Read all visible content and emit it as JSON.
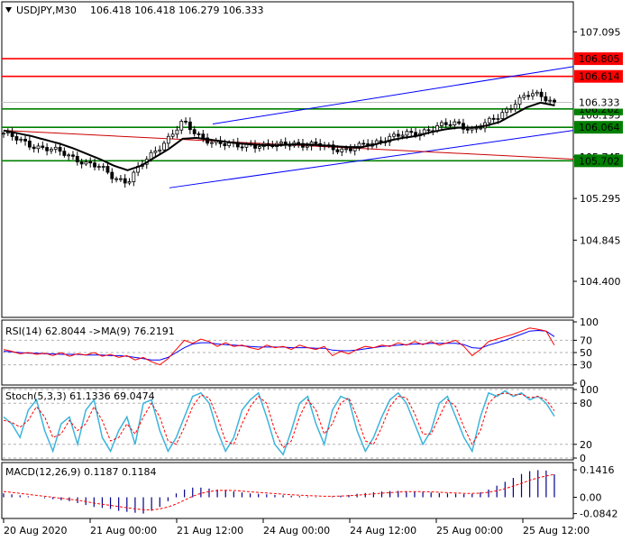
{
  "header": {
    "symbol": "USDJPY,M30",
    "ohlc": "106.418 106.418 106.279 106.333"
  },
  "colors": {
    "candle": "#000000",
    "ma_line": "#000000",
    "resistance": "#ff0000",
    "support": "#008000",
    "channel": "#0000ff",
    "trend_red": "#cc0000",
    "rsi_line": "#ff0000",
    "rsi_ma": "#0000ff",
    "stoch_main": "#3cb4dc",
    "stoch_signal": "#ff0000",
    "macd_hist": "#00008b",
    "macd_signal": "#ff0000"
  },
  "chart_data": [
    {
      "type": "candlestick",
      "title": "USDJPY,M30",
      "ylim": [
        104.03,
        107.4
      ],
      "y_ticks": [
        "107.095",
        "105.745",
        "105.295",
        "104.845",
        "104.400"
      ],
      "x_ticks": [
        "20 Aug 2020",
        "21 Aug 00:00",
        "21 Aug 12:00",
        "24 Aug 00:00",
        "24 Aug 12:00",
        "25 Aug 00:00",
        "25 Aug 12:00"
      ],
      "close_path": [
        106.0,
        105.93,
        105.87,
        105.84,
        105.8,
        105.74,
        105.68,
        105.63,
        105.52,
        105.48,
        105.66,
        105.8,
        105.96,
        106.12,
        105.98,
        105.92,
        105.88,
        105.86,
        105.88,
        105.86,
        105.87,
        105.9,
        105.87,
        105.87,
        105.84,
        105.82,
        105.86,
        105.9,
        105.96,
        105.98,
        106.0,
        106.05,
        106.09,
        106.1,
        106.04,
        106.1,
        106.18,
        106.32,
        106.42,
        106.4,
        106.333
      ],
      "ma_path": [
        106.03,
        106.0,
        105.97,
        105.93,
        105.89,
        105.84,
        105.78,
        105.72,
        105.65,
        105.6,
        105.65,
        105.74,
        105.83,
        105.94,
        105.95,
        105.93,
        105.91,
        105.89,
        105.88,
        105.87,
        105.87,
        105.88,
        105.88,
        105.87,
        105.86,
        105.85,
        105.85,
        105.88,
        105.92,
        105.95,
        105.97,
        106.01,
        106.04,
        106.06,
        106.06,
        106.08,
        106.12,
        106.2,
        106.28,
        106.33,
        106.3
      ],
      "levels": [
        {
          "label": "106.805",
          "value": 106.805,
          "color": "#ff0000",
          "label_bg": "#ff0000"
        },
        {
          "label": "106.614",
          "value": 106.614,
          "color": "#ff0000",
          "label_bg": "#ff0000"
        },
        {
          "label": "106.262",
          "value": 106.262,
          "color": "#008000",
          "label_bg": "#008000"
        },
        {
          "label": "106.064",
          "value": 106.064,
          "color": "#008000",
          "label_bg": "#008000"
        },
        {
          "label": "105.702",
          "value": 105.702,
          "color": "#008000",
          "label_bg": "#008000"
        }
      ],
      "current_price": {
        "label": "106.333",
        "value": 106.333
      },
      "partial_labels": [
        "106.195",
        "105.745"
      ]
    },
    {
      "type": "line",
      "title": "RSI(14) 62.8044 ->MA(9) 76.2191",
      "ylim": [
        0,
        100
      ],
      "y_ticks": [
        "100",
        "70",
        "50",
        "30",
        "0"
      ],
      "series": [
        {
          "values": [
            55,
            52,
            48,
            50,
            47,
            49,
            45,
            50,
            44,
            48,
            46,
            50,
            44,
            47,
            42,
            45,
            38,
            42,
            35,
            30,
            40,
            55,
            70,
            65,
            72,
            68,
            60,
            66,
            60,
            62,
            58,
            55,
            62,
            58,
            60,
            55,
            62,
            58,
            55,
            60,
            45,
            52,
            48,
            55,
            60,
            58,
            62,
            60,
            66,
            62,
            68,
            63,
            68,
            62,
            66,
            70,
            60,
            45,
            55,
            68,
            72,
            76,
            80,
            85,
            90,
            88,
            85,
            62
          ]
        },
        {
          "values": [
            52,
            51,
            50,
            49,
            49,
            48,
            48,
            47,
            47,
            47,
            46,
            46,
            46,
            45,
            45,
            44,
            42,
            40,
            38,
            38,
            42,
            50,
            58,
            64,
            66,
            66,
            64,
            63,
            62,
            61,
            60,
            59,
            59,
            59,
            59,
            58,
            58,
            58,
            57,
            57,
            54,
            53,
            53,
            54,
            56,
            58,
            60,
            61,
            62,
            63,
            64,
            64,
            65,
            65,
            65,
            65,
            63,
            58,
            57,
            62,
            66,
            70,
            75,
            80,
            85,
            86,
            85,
            76
          ]
        }
      ]
    },
    {
      "type": "line",
      "title": "Stoch(5,3,3) 61.1336 69.0474",
      "ylim": [
        0,
        100
      ],
      "y_ticks": [
        "100",
        "80",
        "20",
        "0"
      ],
      "series": [
        {
          "values": [
            60,
            50,
            30,
            70,
            85,
            40,
            10,
            50,
            60,
            20,
            70,
            85,
            30,
            10,
            40,
            60,
            20,
            80,
            85,
            40,
            10,
            30,
            60,
            90,
            95,
            80,
            40,
            10,
            30,
            70,
            85,
            95,
            60,
            20,
            5,
            40,
            80,
            90,
            50,
            20,
            70,
            90,
            85,
            40,
            10,
            30,
            60,
            85,
            95,
            80,
            50,
            20,
            40,
            80,
            90,
            60,
            30,
            10,
            60,
            95,
            90,
            98,
            90,
            95,
            85,
            90,
            80,
            61
          ]
        },
        {
          "values": [
            55,
            52,
            45,
            55,
            75,
            60,
            30,
            35,
            55,
            40,
            50,
            75,
            55,
            25,
            30,
            50,
            35,
            60,
            80,
            60,
            25,
            20,
            45,
            75,
            92,
            88,
            60,
            25,
            20,
            50,
            75,
            90,
            80,
            40,
            15,
            25,
            60,
            85,
            70,
            35,
            50,
            80,
            88,
            60,
            25,
            20,
            45,
            75,
            90,
            88,
            65,
            35,
            35,
            60,
            85,
            75,
            45,
            20,
            40,
            80,
            92,
            95,
            92,
            93,
            88,
            90,
            85,
            69
          ]
        }
      ]
    },
    {
      "type": "bar",
      "title": "MACD(12,26,9) 0.1187 0.1184",
      "ylim": [
        -0.1,
        0.17
      ],
      "y_ticks": [
        "0.1416",
        "0.00",
        "-0.0842"
      ],
      "series": [
        {
          "values": [
            0.02,
            0.015,
            0.01,
            0.005,
            0.0,
            -0.005,
            -0.01,
            -0.015,
            -0.02,
            -0.03,
            -0.04,
            -0.05,
            -0.055,
            -0.06,
            -0.07,
            -0.075,
            -0.08,
            -0.084,
            -0.07,
            -0.05,
            -0.02,
            0.02,
            0.04,
            0.05,
            0.05,
            0.045,
            0.04,
            0.035,
            0.03,
            0.025,
            0.02,
            0.018,
            0.015,
            0.012,
            0.01,
            0.008,
            0.006,
            0.004,
            0.002,
            0.0,
            0.004,
            0.008,
            0.012,
            0.018,
            0.022,
            0.026,
            0.03,
            0.032,
            0.033,
            0.032,
            0.03,
            0.028,
            0.025,
            0.022,
            0.02,
            0.018,
            0.016,
            0.018,
            0.025,
            0.04,
            0.06,
            0.08,
            0.1,
            0.12,
            0.135,
            0.14,
            0.138,
            0.1187
          ]
        },
        {
          "values": [
            0.03,
            0.025,
            0.02,
            0.015,
            0.01,
            0.005,
            0.0,
            -0.005,
            -0.01,
            -0.015,
            -0.022,
            -0.03,
            -0.036,
            -0.042,
            -0.048,
            -0.054,
            -0.06,
            -0.064,
            -0.065,
            -0.06,
            -0.05,
            -0.035,
            -0.015,
            0.005,
            0.02,
            0.03,
            0.035,
            0.036,
            0.035,
            0.032,
            0.028,
            0.025,
            0.022,
            0.019,
            0.016,
            0.013,
            0.011,
            0.009,
            0.007,
            0.005,
            0.005,
            0.006,
            0.008,
            0.011,
            0.014,
            0.018,
            0.021,
            0.024,
            0.027,
            0.029,
            0.029,
            0.029,
            0.028,
            0.026,
            0.024,
            0.022,
            0.02,
            0.02,
            0.021,
            0.026,
            0.034,
            0.045,
            0.058,
            0.072,
            0.088,
            0.1,
            0.11,
            0.1184
          ]
        }
      ]
    }
  ]
}
